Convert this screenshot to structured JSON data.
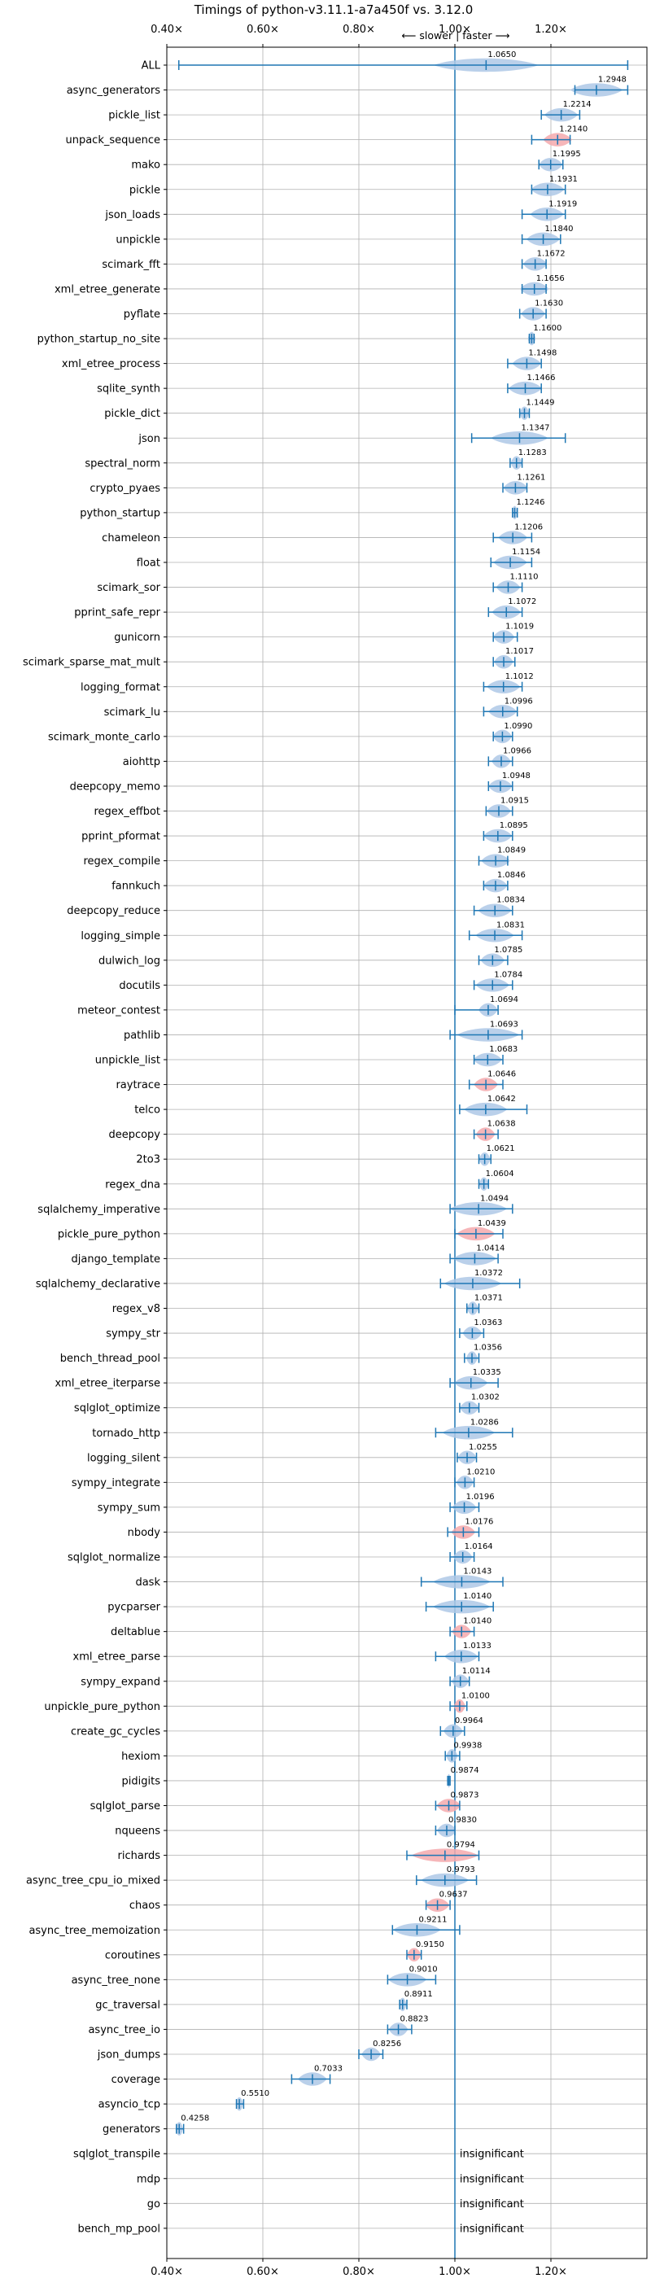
{
  "chart_data": {
    "type": "violin",
    "title": "Timings of python-v3.11.1-a7a450f vs. 3.12.0",
    "direction_label": "⟵ slower | faster ⟶",
    "xlim": [
      0.4,
      1.4
    ],
    "reference_line": 1.0,
    "xticks": [
      {
        "value": 0.4,
        "label": "0.40×"
      },
      {
        "value": 0.6,
        "label": "0.60×"
      },
      {
        "value": 0.8,
        "label": "0.80×"
      },
      {
        "value": 1.0,
        "label": "1.00×"
      },
      {
        "value": 1.2,
        "label": "1.20×"
      }
    ],
    "colors": {
      "faster": "#aec8e6",
      "slower": "#f4a9ad",
      "whisker": "#1f77b4",
      "reference": "#1f77b4"
    },
    "benchmarks": [
      {
        "name": "ALL",
        "value": "1.0650",
        "mean": 1.065,
        "min": 0.425,
        "max": 1.36,
        "w": 0.11,
        "slower": false
      },
      {
        "name": "async_generators",
        "value": "1.2948",
        "mean": 1.2948,
        "min": 1.25,
        "max": 1.36,
        "w": 0.055,
        "slower": false
      },
      {
        "name": "pickle_list",
        "value": "1.2214",
        "mean": 1.2214,
        "min": 1.18,
        "max": 1.26,
        "w": 0.035,
        "slower": false
      },
      {
        "name": "unpack_sequence",
        "value": "1.2140",
        "mean": 1.214,
        "min": 1.16,
        "max": 1.24,
        "w": 0.03,
        "slower": true
      },
      {
        "name": "mako",
        "value": "1.1995",
        "mean": 1.1995,
        "min": 1.175,
        "max": 1.225,
        "w": 0.025,
        "slower": false
      },
      {
        "name": "pickle",
        "value": "1.1931",
        "mean": 1.1931,
        "min": 1.16,
        "max": 1.23,
        "w": 0.035,
        "slower": false
      },
      {
        "name": "json_loads",
        "value": "1.1919",
        "mean": 1.1919,
        "min": 1.14,
        "max": 1.23,
        "w": 0.035,
        "slower": false
      },
      {
        "name": "unpickle",
        "value": "1.1840",
        "mean": 1.184,
        "min": 1.14,
        "max": 1.22,
        "w": 0.035,
        "slower": false
      },
      {
        "name": "scimark_fft",
        "value": "1.1672",
        "mean": 1.1672,
        "min": 1.14,
        "max": 1.19,
        "w": 0.025,
        "slower": false
      },
      {
        "name": "xml_etree_generate",
        "value": "1.1656",
        "mean": 1.1656,
        "min": 1.14,
        "max": 1.19,
        "w": 0.03,
        "slower": false
      },
      {
        "name": "pyflate",
        "value": "1.1630",
        "mean": 1.163,
        "min": 1.135,
        "max": 1.19,
        "w": 0.025,
        "slower": false
      },
      {
        "name": "python_startup_no_site",
        "value": "1.1600",
        "mean": 1.16,
        "min": 1.155,
        "max": 1.165,
        "w": 0.008,
        "slower": false
      },
      {
        "name": "xml_etree_process",
        "value": "1.1498",
        "mean": 1.1498,
        "min": 1.11,
        "max": 1.18,
        "w": 0.03,
        "slower": false
      },
      {
        "name": "sqlite_synth",
        "value": "1.1466",
        "mean": 1.1466,
        "min": 1.11,
        "max": 1.18,
        "w": 0.035,
        "slower": false
      },
      {
        "name": "pickle_dict",
        "value": "1.1449",
        "mean": 1.1449,
        "min": 1.135,
        "max": 1.155,
        "w": 0.01,
        "slower": false
      },
      {
        "name": "json",
        "value": "1.1347",
        "mean": 1.1347,
        "min": 1.035,
        "max": 1.23,
        "w": 0.06,
        "slower": false
      },
      {
        "name": "spectral_norm",
        "value": "1.1283",
        "mean": 1.1283,
        "min": 1.115,
        "max": 1.14,
        "w": 0.012,
        "slower": false
      },
      {
        "name": "crypto_pyaes",
        "value": "1.1261",
        "mean": 1.1261,
        "min": 1.1,
        "max": 1.15,
        "w": 0.025,
        "slower": false
      },
      {
        "name": "python_startup",
        "value": "1.1246",
        "mean": 1.1246,
        "min": 1.12,
        "max": 1.13,
        "w": 0.006,
        "slower": false
      },
      {
        "name": "chameleon",
        "value": "1.1206",
        "mean": 1.1206,
        "min": 1.08,
        "max": 1.16,
        "w": 0.03,
        "slower": false
      },
      {
        "name": "float",
        "value": "1.1154",
        "mean": 1.1154,
        "min": 1.075,
        "max": 1.16,
        "w": 0.035,
        "slower": false
      },
      {
        "name": "scimark_sor",
        "value": "1.1110",
        "mean": 1.111,
        "min": 1.08,
        "max": 1.14,
        "w": 0.025,
        "slower": false
      },
      {
        "name": "pprint_safe_repr",
        "value": "1.1072",
        "mean": 1.1072,
        "min": 1.07,
        "max": 1.14,
        "w": 0.03,
        "slower": false
      },
      {
        "name": "gunicorn",
        "value": "1.1019",
        "mean": 1.1019,
        "min": 1.08,
        "max": 1.13,
        "w": 0.022,
        "slower": false
      },
      {
        "name": "scimark_sparse_mat_mult",
        "value": "1.1017",
        "mean": 1.1017,
        "min": 1.08,
        "max": 1.125,
        "w": 0.02,
        "slower": false
      },
      {
        "name": "logging_format",
        "value": "1.1012",
        "mean": 1.1012,
        "min": 1.06,
        "max": 1.14,
        "w": 0.035,
        "slower": false
      },
      {
        "name": "scimark_lu",
        "value": "1.0996",
        "mean": 1.0996,
        "min": 1.06,
        "max": 1.13,
        "w": 0.03,
        "slower": false
      },
      {
        "name": "scimark_monte_carlo",
        "value": "1.0990",
        "mean": 1.099,
        "min": 1.08,
        "max": 1.12,
        "w": 0.02,
        "slower": false
      },
      {
        "name": "aiohttp",
        "value": "1.0966",
        "mean": 1.0966,
        "min": 1.07,
        "max": 1.12,
        "w": 0.02,
        "slower": false
      },
      {
        "name": "deepcopy_memo",
        "value": "1.0948",
        "mean": 1.0948,
        "min": 1.07,
        "max": 1.12,
        "w": 0.025,
        "slower": false
      },
      {
        "name": "regex_effbot",
        "value": "1.0915",
        "mean": 1.0915,
        "min": 1.065,
        "max": 1.12,
        "w": 0.025,
        "slower": false
      },
      {
        "name": "pprint_pformat",
        "value": "1.0895",
        "mean": 1.0895,
        "min": 1.06,
        "max": 1.12,
        "w": 0.03,
        "slower": false
      },
      {
        "name": "regex_compile",
        "value": "1.0849",
        "mean": 1.0849,
        "min": 1.05,
        "max": 1.11,
        "w": 0.03,
        "slower": false
      },
      {
        "name": "fannkuch",
        "value": "1.0846",
        "mean": 1.0846,
        "min": 1.06,
        "max": 1.11,
        "w": 0.025,
        "slower": false
      },
      {
        "name": "deepcopy_reduce",
        "value": "1.0834",
        "mean": 1.0834,
        "min": 1.04,
        "max": 1.12,
        "w": 0.035,
        "slower": false
      },
      {
        "name": "logging_simple",
        "value": "1.0831",
        "mean": 1.0831,
        "min": 1.03,
        "max": 1.14,
        "w": 0.04,
        "slower": false
      },
      {
        "name": "dulwich_log",
        "value": "1.0785",
        "mean": 1.0785,
        "min": 1.05,
        "max": 1.11,
        "w": 0.025,
        "slower": false
      },
      {
        "name": "docutils",
        "value": "1.0784",
        "mean": 1.0784,
        "min": 1.04,
        "max": 1.12,
        "w": 0.035,
        "slower": false
      },
      {
        "name": "meteor_contest",
        "value": "1.0694",
        "mean": 1.0694,
        "min": 1.0,
        "max": 1.09,
        "w": 0.02,
        "slower": false
      },
      {
        "name": "pathlib",
        "value": "1.0693",
        "mean": 1.0693,
        "min": 0.99,
        "max": 1.14,
        "w": 0.065,
        "slower": false
      },
      {
        "name": "unpickle_list",
        "value": "1.0683",
        "mean": 1.0683,
        "min": 1.04,
        "max": 1.1,
        "w": 0.03,
        "slower": false
      },
      {
        "name": "raytrace",
        "value": "1.0646",
        "mean": 1.0646,
        "min": 1.03,
        "max": 1.1,
        "w": 0.025,
        "slower": true
      },
      {
        "name": "telco",
        "value": "1.0642",
        "mean": 1.0642,
        "min": 1.01,
        "max": 1.15,
        "w": 0.045,
        "slower": false
      },
      {
        "name": "deepcopy",
        "value": "1.0638",
        "mean": 1.0638,
        "min": 1.04,
        "max": 1.09,
        "w": 0.02,
        "slower": true
      },
      {
        "name": "2to3",
        "value": "1.0621",
        "mean": 1.0621,
        "min": 1.05,
        "max": 1.075,
        "w": 0.012,
        "slower": false
      },
      {
        "name": "regex_dna",
        "value": "1.0604",
        "mean": 1.0604,
        "min": 1.05,
        "max": 1.07,
        "w": 0.01,
        "slower": false
      },
      {
        "name": "sqlalchemy_imperative",
        "value": "1.0494",
        "mean": 1.0494,
        "min": 0.99,
        "max": 1.12,
        "w": 0.06,
        "slower": false
      },
      {
        "name": "pickle_pure_python",
        "value": "1.0439",
        "mean": 1.0439,
        "min": 1.0,
        "max": 1.1,
        "w": 0.04,
        "slower": true
      },
      {
        "name": "django_template",
        "value": "1.0414",
        "mean": 1.0414,
        "min": 0.99,
        "max": 1.09,
        "w": 0.045,
        "slower": false
      },
      {
        "name": "sqlalchemy_declarative",
        "value": "1.0372",
        "mean": 1.0372,
        "min": 0.97,
        "max": 1.135,
        "w": 0.06,
        "slower": false
      },
      {
        "name": "regex_v8",
        "value": "1.0371",
        "mean": 1.0371,
        "min": 1.025,
        "max": 1.05,
        "w": 0.012,
        "slower": false
      },
      {
        "name": "sympy_str",
        "value": "1.0363",
        "mean": 1.0363,
        "min": 1.01,
        "max": 1.06,
        "w": 0.02,
        "slower": false
      },
      {
        "name": "bench_thread_pool",
        "value": "1.0356",
        "mean": 1.0356,
        "min": 1.02,
        "max": 1.05,
        "w": 0.012,
        "slower": false
      },
      {
        "name": "xml_etree_iterparse",
        "value": "1.0335",
        "mean": 1.0335,
        "min": 0.99,
        "max": 1.09,
        "w": 0.035,
        "slower": false
      },
      {
        "name": "sqlglot_optimize",
        "value": "1.0302",
        "mean": 1.0302,
        "min": 1.01,
        "max": 1.05,
        "w": 0.02,
        "slower": false
      },
      {
        "name": "tornado_http",
        "value": "1.0286",
        "mean": 1.0286,
        "min": 0.96,
        "max": 1.12,
        "w": 0.055,
        "slower": false
      },
      {
        "name": "logging_silent",
        "value": "1.0255",
        "mean": 1.0255,
        "min": 1.005,
        "max": 1.045,
        "w": 0.02,
        "slower": false
      },
      {
        "name": "sympy_integrate",
        "value": "1.0210",
        "mean": 1.021,
        "min": 1.0,
        "max": 1.04,
        "w": 0.018,
        "slower": false
      },
      {
        "name": "sympy_sum",
        "value": "1.0196",
        "mean": 1.0196,
        "min": 0.99,
        "max": 1.05,
        "w": 0.025,
        "slower": false
      },
      {
        "name": "nbody",
        "value": "1.0176",
        "mean": 1.0176,
        "min": 0.985,
        "max": 1.05,
        "w": 0.025,
        "slower": true
      },
      {
        "name": "sqlglot_normalize",
        "value": "1.0164",
        "mean": 1.0164,
        "min": 0.99,
        "max": 1.04,
        "w": 0.02,
        "slower": false
      },
      {
        "name": "dask",
        "value": "1.0143",
        "mean": 1.0143,
        "min": 0.93,
        "max": 1.1,
        "w": 0.06,
        "slower": false
      },
      {
        "name": "pycparser",
        "value": "1.0140",
        "mean": 1.014,
        "min": 0.94,
        "max": 1.08,
        "w": 0.06,
        "slower": false
      },
      {
        "name": "deltablue",
        "value": "1.0140",
        "mean": 1.014,
        "min": 0.99,
        "max": 1.04,
        "w": 0.02,
        "slower": true
      },
      {
        "name": "xml_etree_parse",
        "value": "1.0133",
        "mean": 1.0133,
        "min": 0.96,
        "max": 1.05,
        "w": 0.035,
        "slower": false
      },
      {
        "name": "sympy_expand",
        "value": "1.0114",
        "mean": 1.0114,
        "min": 0.99,
        "max": 1.03,
        "w": 0.018,
        "slower": false
      },
      {
        "name": "unpickle_pure_python",
        "value": "1.0100",
        "mean": 1.01,
        "min": 0.99,
        "max": 1.025,
        "w": 0.012,
        "slower": true
      },
      {
        "name": "create_gc_cycles",
        "value": "0.9964",
        "mean": 0.9964,
        "min": 0.97,
        "max": 1.02,
        "w": 0.02,
        "slower": false
      },
      {
        "name": "hexiom",
        "value": "0.9938",
        "mean": 0.9938,
        "min": 0.98,
        "max": 1.01,
        "w": 0.012,
        "slower": false
      },
      {
        "name": "pidigits",
        "value": "0.9874",
        "mean": 0.9874,
        "min": 0.985,
        "max": 0.99,
        "w": 0.004,
        "slower": false
      },
      {
        "name": "sqlglot_parse",
        "value": "0.9873",
        "mean": 0.9873,
        "min": 0.96,
        "max": 1.01,
        "w": 0.025,
        "slower": true
      },
      {
        "name": "nqueens",
        "value": "0.9830",
        "mean": 0.983,
        "min": 0.96,
        "max": 1.0,
        "w": 0.02,
        "slower": false
      },
      {
        "name": "richards",
        "value": "0.9794",
        "mean": 0.9794,
        "min": 0.9,
        "max": 1.05,
        "w": 0.07,
        "slower": true
      },
      {
        "name": "async_tree_cpu_io_mixed",
        "value": "0.9793",
        "mean": 0.9793,
        "min": 0.92,
        "max": 1.045,
        "w": 0.05,
        "slower": false
      },
      {
        "name": "chaos",
        "value": "0.9637",
        "mean": 0.9637,
        "min": 0.94,
        "max": 0.99,
        "w": 0.025,
        "slower": true
      },
      {
        "name": "async_tree_memoization",
        "value": "0.9211",
        "mean": 0.9211,
        "min": 0.87,
        "max": 1.01,
        "w": 0.05,
        "slower": false
      },
      {
        "name": "coroutines",
        "value": "0.9150",
        "mean": 0.915,
        "min": 0.9,
        "max": 0.93,
        "w": 0.015,
        "slower": true
      },
      {
        "name": "async_tree_none",
        "value": "0.9010",
        "mean": 0.901,
        "min": 0.86,
        "max": 0.96,
        "w": 0.04,
        "slower": false
      },
      {
        "name": "gc_traversal",
        "value": "0.8911",
        "mean": 0.8911,
        "min": 0.885,
        "max": 0.9,
        "w": 0.008,
        "slower": false
      },
      {
        "name": "async_tree_io",
        "value": "0.8823",
        "mean": 0.8823,
        "min": 0.86,
        "max": 0.91,
        "w": 0.02,
        "slower": false
      },
      {
        "name": "json_dumps",
        "value": "0.8256",
        "mean": 0.8256,
        "min": 0.8,
        "max": 0.85,
        "w": 0.02,
        "slower": false
      },
      {
        "name": "coverage",
        "value": "0.7033",
        "mean": 0.7033,
        "min": 0.66,
        "max": 0.74,
        "w": 0.03,
        "slower": false
      },
      {
        "name": "asyncio_tcp",
        "value": "0.5510",
        "mean": 0.551,
        "min": 0.545,
        "max": 0.56,
        "w": 0.008,
        "slower": false
      },
      {
        "name": "generators",
        "value": "0.4258",
        "mean": 0.4258,
        "min": 0.42,
        "max": 0.435,
        "w": 0.008,
        "slower": false
      },
      {
        "name": "sqlglot_transpile",
        "value": "insignificant",
        "insignificant": true
      },
      {
        "name": "mdp",
        "value": "insignificant",
        "insignificant": true
      },
      {
        "name": "go",
        "value": "insignificant",
        "insignificant": true
      },
      {
        "name": "bench_mp_pool",
        "value": "insignificant",
        "insignificant": true
      }
    ]
  }
}
